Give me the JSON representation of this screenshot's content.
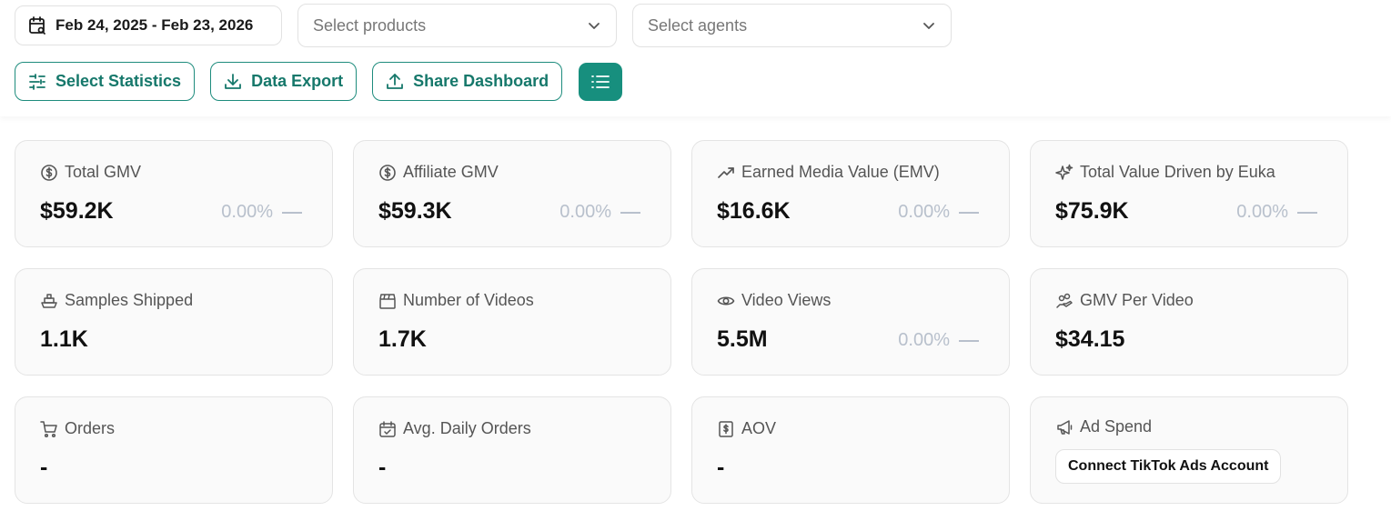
{
  "filters": {
    "date_range": "Feb 24, 2025 - Feb 23, 2026",
    "products_placeholder": "Select products",
    "agents_placeholder": "Select agents"
  },
  "actions": {
    "select_statistics": "Select Statistics",
    "data_export": "Data Export",
    "share_dashboard": "Share Dashboard"
  },
  "colors": {
    "accent": "#178f7e",
    "muted_delta": "#b8c0cc",
    "card_bg": "#fafafa"
  },
  "cards": [
    {
      "icon": "dollar-circle-icon",
      "title": "Total GMV",
      "value": "$59.2K",
      "delta": "0.00%"
    },
    {
      "icon": "dollar-circle-icon",
      "title": "Affiliate GMV",
      "value": "$59.3K",
      "delta": "0.00%"
    },
    {
      "icon": "trending-up-icon",
      "title": "Earned Media Value (EMV)",
      "value": "$16.6K",
      "delta": "0.00%"
    },
    {
      "icon": "sparkles-icon",
      "title": "Total Value Driven by Euka",
      "value": "$75.9K",
      "delta": "0.00%"
    },
    {
      "icon": "ship-icon",
      "title": "Samples Shipped",
      "value": "1.1K"
    },
    {
      "icon": "clapperboard-icon",
      "title": "Number of Videos",
      "value": "1.7K"
    },
    {
      "icon": "eye-icon",
      "title": "Video Views",
      "value": "5.5M",
      "delta": "0.00%"
    },
    {
      "icon": "hand-coins-icon",
      "title": "GMV Per Video",
      "value": "$34.15"
    },
    {
      "icon": "cart-icon",
      "title": "Orders",
      "value": "-"
    },
    {
      "icon": "calendar-check-icon",
      "title": "Avg. Daily Orders",
      "value": "-"
    },
    {
      "icon": "receipt-dollar-icon",
      "title": "AOV",
      "value": "-"
    },
    {
      "icon": "megaphone-icon",
      "title": "Ad Spend",
      "button": "Connect TikTok Ads Account"
    }
  ]
}
